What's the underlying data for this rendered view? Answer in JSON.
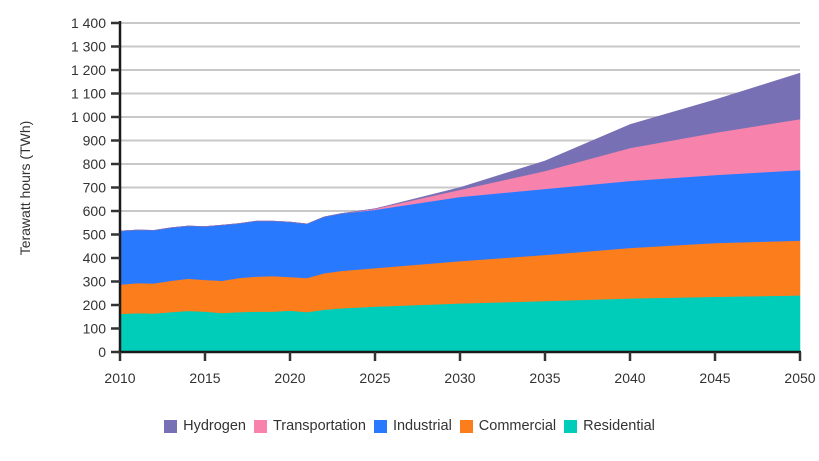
{
  "chart_data": {
    "type": "area",
    "stacked": true,
    "title": "",
    "xlabel": "",
    "ylabel": "Terawatt hours (TWh)",
    "xlim": [
      2010,
      2050
    ],
    "ylim": [
      0,
      1400
    ],
    "x_ticks": [
      "2010",
      "2015",
      "2020",
      "2025",
      "2030",
      "2035",
      "2040",
      "2045",
      "2050"
    ],
    "x_tick_values": [
      2010,
      2015,
      2020,
      2025,
      2030,
      2035,
      2040,
      2045,
      2050
    ],
    "y_ticks": [
      "0",
      "100",
      "200",
      "300",
      "400",
      "500",
      "600",
      "700",
      "800",
      "900",
      "1 000",
      "1 100",
      "1 200",
      "1 300",
      "1 400"
    ],
    "y_tick_values": [
      0,
      100,
      200,
      300,
      400,
      500,
      600,
      700,
      800,
      900,
      1000,
      1100,
      1200,
      1300,
      1400
    ],
    "grid": "horizontal",
    "legend_position": "bottom",
    "x": [
      2010,
      2011,
      2012,
      2013,
      2014,
      2015,
      2016,
      2017,
      2018,
      2019,
      2020,
      2021,
      2022,
      2023,
      2025,
      2030,
      2035,
      2040,
      2045,
      2050
    ],
    "series": [
      {
        "name": "Residential",
        "color": "#00cdb9",
        "values": [
          162,
          165,
          164,
          170,
          175,
          172,
          166,
          170,
          172,
          172,
          176,
          170,
          180,
          186,
          193,
          207,
          217,
          228,
          235,
          241
        ]
      },
      {
        "name": "Commercial",
        "color": "#fb7d1c",
        "values": [
          125,
          128,
          128,
          133,
          137,
          135,
          137,
          145,
          149,
          151,
          143,
          145,
          155,
          159,
          164,
          180,
          196,
          215,
          229,
          233
        ]
      },
      {
        "name": "Industrial",
        "color": "#2979ff",
        "values": [
          228,
          226,
          226,
          226,
          224,
          227,
          237,
          232,
          236,
          234,
          234,
          230,
          240,
          244,
          248,
          273,
          281,
          285,
          289,
          300
        ]
      },
      {
        "name": "Transportation",
        "color": "#f783ac",
        "values": [
          0,
          0,
          0,
          0,
          0,
          0,
          0,
          0,
          0,
          0,
          0,
          0,
          0,
          0,
          5,
          30,
          76,
          140,
          180,
          217
        ]
      },
      {
        "name": "Hydrogen",
        "color": "#7870b4",
        "values": [
          0,
          0,
          0,
          0,
          0,
          0,
          0,
          0,
          0,
          0,
          0,
          0,
          0,
          0,
          0,
          10,
          43,
          100,
          140,
          196
        ]
      }
    ],
    "legend": [
      "Hydrogen",
      "Transportation",
      "Industrial",
      "Commercial",
      "Residential"
    ]
  }
}
